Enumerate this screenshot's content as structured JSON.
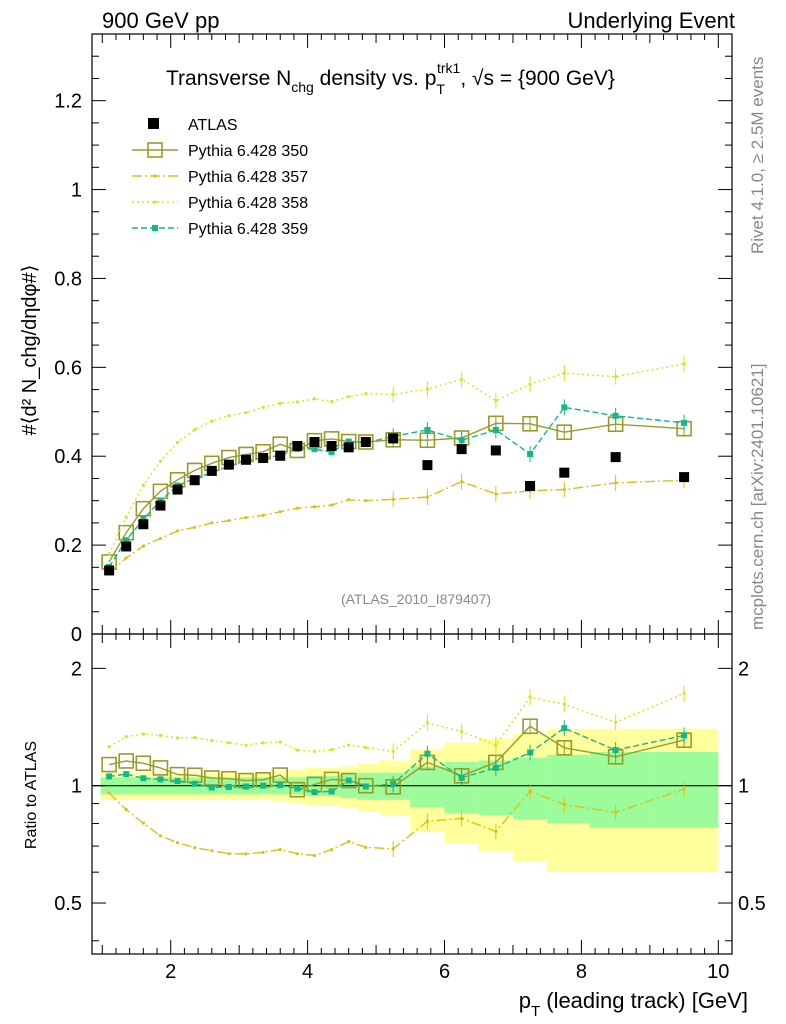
{
  "header": {
    "left": "900 GeV pp",
    "right": "Underlying Event"
  },
  "side": {
    "rivet": "Rivet 4.1.0, ≥ 2.5M events",
    "mcplots": "mcplots.cern.ch [arXiv:2401.10621]"
  },
  "chart_data": {
    "type": "scatter",
    "title": {
      "prefix": "Transverse N",
      "sub": "chg",
      "mid": " density vs. p",
      "sup": "trk1",
      "sub2": "T",
      "suffix": ", √s = {900 GeV}"
    },
    "ylabel": "#⟨d² N_chg/dηdφ#⟩",
    "xlabel": {
      "prefix": "p",
      "sub": "T",
      "suffix": " (leading track) [GeV]"
    },
    "ratio_ylabel": "Ratio to ATLAS",
    "watermark": "(ATLAS_2010_I879407)",
    "xlim": [
      0.85,
      10.2
    ],
    "ylim": [
      0,
      1.35
    ],
    "ratio_ylim": [
      0.37,
      2.45
    ],
    "x_ticks": [
      "2",
      "4",
      "6",
      "8",
      "10"
    ],
    "y_ticks": [
      "0",
      "0.2",
      "0.4",
      "0.6",
      "0.8",
      "1",
      "1.2"
    ],
    "ratio_ticks": [
      "0.5",
      "1",
      "2"
    ],
    "x": [
      1.1,
      1.35,
      1.6,
      1.85,
      2.1,
      2.35,
      2.6,
      2.85,
      3.1,
      3.35,
      3.6,
      3.85,
      4.1,
      4.35,
      4.6,
      4.85,
      5.25,
      5.75,
      6.25,
      6.75,
      7.25,
      7.75,
      8.5,
      9.5
    ],
    "data": {
      "name": "ATLAS",
      "values": [
        0.143,
        0.197,
        0.247,
        0.289,
        0.325,
        0.346,
        0.367,
        0.381,
        0.392,
        0.396,
        0.401,
        0.423,
        0.432,
        0.423,
        0.42,
        0.432,
        0.44,
        0.38,
        0.416,
        0.413,
        0.333,
        0.363,
        0.398,
        0.353
      ],
      "band_inner": [
        0.05,
        0.05,
        0.05,
        0.05,
        0.05,
        0.05,
        0.05,
        0.05,
        0.05,
        0.05,
        0.05,
        0.05,
        0.06,
        0.06,
        0.07,
        0.08,
        0.08,
        0.12,
        0.15,
        0.16,
        0.18,
        0.2,
        0.22,
        0.22
      ],
      "band_outer": [
        0.08,
        0.08,
        0.08,
        0.08,
        0.08,
        0.08,
        0.08,
        0.08,
        0.08,
        0.08,
        0.09,
        0.1,
        0.11,
        0.11,
        0.12,
        0.14,
        0.16,
        0.24,
        0.29,
        0.32,
        0.36,
        0.4,
        0.4,
        0.4
      ]
    },
    "series": [
      {
        "name": "Pythia 6.428 350",
        "color": "#9a9a28",
        "dash": "",
        "marker": "open-square",
        "values": [
          0.162,
          0.228,
          0.282,
          0.321,
          0.347,
          0.368,
          0.384,
          0.397,
          0.404,
          0.41,
          0.427,
          0.413,
          0.435,
          0.439,
          0.433,
          0.432,
          0.437,
          0.436,
          0.441,
          0.474,
          0.473,
          0.454,
          0.472,
          0.462
        ]
      },
      {
        "name": "Pythia 6.428 357",
        "color": "#d6c21a",
        "dash": "10,3,2,3",
        "marker": "small",
        "values": [
          0.137,
          0.171,
          0.198,
          0.215,
          0.232,
          0.24,
          0.25,
          0.255,
          0.262,
          0.267,
          0.275,
          0.283,
          0.286,
          0.29,
          0.302,
          0.3,
          0.303,
          0.308,
          0.343,
          0.315,
          0.322,
          0.325,
          0.34,
          0.346
        ]
      },
      {
        "name": "Pythia 6.428 358",
        "color": "#cfe620",
        "dash": "2,3",
        "marker": "small",
        "values": [
          0.18,
          0.263,
          0.335,
          0.389,
          0.431,
          0.46,
          0.479,
          0.491,
          0.498,
          0.51,
          0.519,
          0.522,
          0.529,
          0.523,
          0.534,
          0.541,
          0.539,
          0.551,
          0.573,
          0.525,
          0.562,
          0.587,
          0.579,
          0.608
        ]
      },
      {
        "name": "Pythia 6.428 359",
        "color": "#14b888",
        "dash": "6,3",
        "marker": "filled-square",
        "values": [
          0.151,
          0.211,
          0.258,
          0.3,
          0.334,
          0.35,
          0.363,
          0.378,
          0.39,
          0.396,
          0.402,
          0.416,
          0.416,
          0.409,
          0.433,
          0.43,
          0.445,
          0.459,
          0.436,
          0.459,
          0.405,
          0.51,
          0.491,
          0.475
        ]
      }
    ]
  }
}
